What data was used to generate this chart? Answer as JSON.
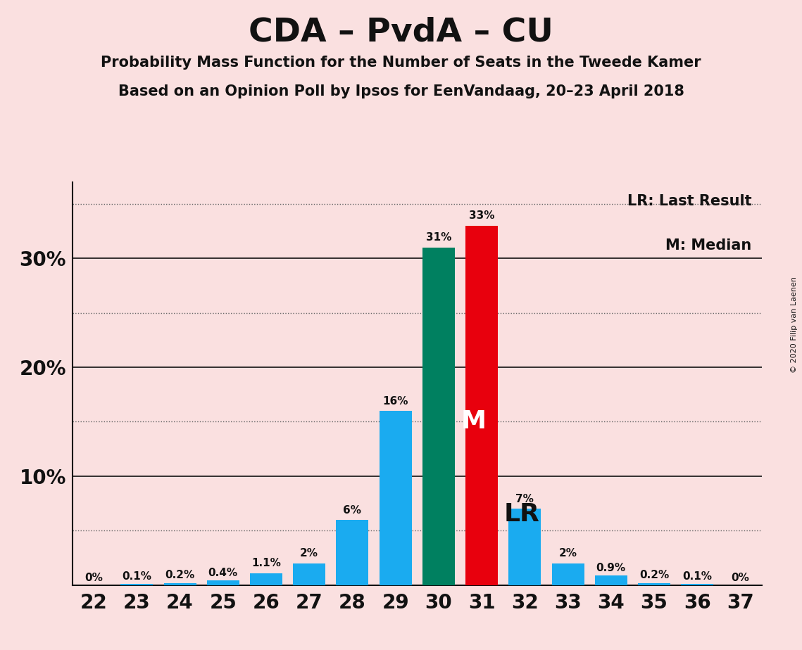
{
  "title": "CDA – PvdA – CU",
  "subtitle1": "Probability Mass Function for the Number of Seats in the Tweede Kamer",
  "subtitle2": "Based on an Opinion Poll by Ipsos for EenVandaag, 20–23 April 2018",
  "copyright": "© 2020 Filip van Laenen",
  "legend_lr": "LR: Last Result",
  "legend_m": "M: Median",
  "seats": [
    22,
    23,
    24,
    25,
    26,
    27,
    28,
    29,
    30,
    31,
    32,
    33,
    34,
    35,
    36,
    37
  ],
  "probabilities": [
    0.0,
    0.1,
    0.2,
    0.4,
    1.1,
    2.0,
    6.0,
    16.0,
    31.0,
    33.0,
    7.0,
    2.0,
    0.9,
    0.2,
    0.1,
    0.0
  ],
  "labels": [
    "0%",
    "0.1%",
    "0.2%",
    "0.4%",
    "1.1%",
    "2%",
    "6%",
    "16%",
    "31%",
    "33%",
    "7%",
    "2%",
    "0.9%",
    "0.2%",
    "0.1%",
    "0%"
  ],
  "median_seat": 30,
  "lr_seat": 31,
  "bar_color_normal": "#1AABF0",
  "bar_color_median": "#008060",
  "bar_color_lr": "#E8000D",
  "background_color": "#FAE0E0",
  "axis_line_color": "#111111",
  "text_color": "#111111",
  "grid_color_solid": "#111111",
  "grid_color_dotted": "#666666",
  "yticks_solid": [
    10,
    20,
    30
  ],
  "yticks_dotted": [
    5,
    15,
    25,
    35
  ],
  "ylim": [
    0,
    37
  ],
  "yaxis_labels": {
    "0": "",
    "10": "10%",
    "20": "20%",
    "30": "30%"
  }
}
